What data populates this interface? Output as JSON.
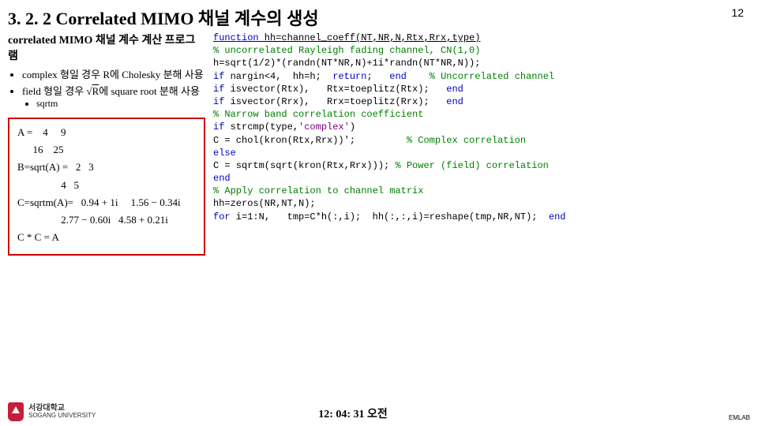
{
  "title": "3. 2. 2 Correlated MIMO 채널 계수의 생성",
  "page_number": "12",
  "left": {
    "sub_heading": "correlated MIMO 채널 계수 계산 프로그램",
    "b1": "complex 형일 경우 R에 Cholesky 분해 사용",
    "b2_prefix": "field 형일 경우 ",
    "b2_mid": "R",
    "b2_suffix": "에 square root 분해 사용",
    "b2_sub": "sqrtm",
    "math": {
      "l1": "A =    4     9",
      "l1b": "      16    25",
      "l2": "B=sqrt(A) =   2   3",
      "l2b": "                 4   5",
      "l3": "C=sqrtm(A)=   0.94 + 1i     1.56 − 0.34i",
      "l3b": "                 2.77 − 0.60i   4.58 + 0.21i",
      "l4": "C * C = A"
    }
  },
  "code": {
    "l1a": "function",
    "l1b": " hh=channel_coeff(NT,NR,N,Rtx,Rrx,type)",
    "l2": "% uncorrelated Rayleigh fading channel, CN(1,0)",
    "l3": "h=sqrt(1/2)*(randn(NT*NR,N)+1i*randn(NT*NR,N));",
    "l4a": "if",
    "l4b": " nargin<4,  hh=h;  ",
    "l4c": "return",
    "l4d": ";   ",
    "l4e": "end",
    "l4f": "    ",
    "l4g": "% Uncorrelated channel",
    "l5a": "if",
    "l5b": " isvector(Rtx),   Rtx=toeplitz(Rtx);   ",
    "l5c": "end",
    "l6a": "if",
    "l6b": " isvector(Rrx),   Rrx=toeplitz(Rrx);   ",
    "l6c": "end",
    "l7": "% Narrow band correlation coefficient",
    "l8a": "if",
    "l8b": " strcmp(type,",
    "l8c": "'complex'",
    "l8d": ")",
    "l9a": "C = chol(kron(Rtx,Rrx))';         ",
    "l9b": "% Complex correlation",
    "l10": "else",
    "l11a": "C = sqrtm(sqrt(kron(Rtx,Rrx))); ",
    "l11b": "% Power (field) correlation",
    "l12": "end",
    "l13": "% Apply correlation to channel matrix",
    "l14": "hh=zeros(NR,NT,N);",
    "l15a": "for",
    "l15b": " i=1:N,   tmp=C*h(:,i);  hh(:,:,i)=reshape(tmp,NR,NT);  ",
    "l15c": "end"
  },
  "footer": {
    "uni_kr": "서강대학교",
    "uni_en": "SOGANG UNIVERSITY",
    "timestamp": "12: 04: 31 오전",
    "lab": "EMLAB"
  },
  "colors": {
    "keyword": "#0000c0",
    "comment": "#008000",
    "string": "#800080",
    "box_border": "#d00000",
    "logo": "#c41e3a"
  }
}
